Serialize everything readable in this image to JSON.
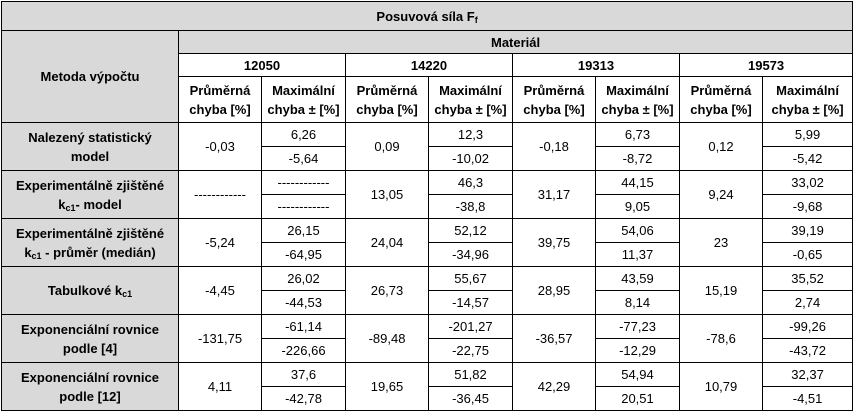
{
  "title": {
    "main": "Posuvová síla F",
    "sub": "f"
  },
  "method_header": "Metoda výpočtu",
  "material_header": "Materiál",
  "avg_label_1": "Průměrná",
  "avg_label_2": "chyba [%]",
  "max_label_1": "Maximální",
  "max_label_2": "chyba ± [%]",
  "materials": [
    "12050",
    "14220",
    "19313",
    "19573"
  ],
  "rows": [
    {
      "label_1": "Nalezený statistický",
      "label_2": "model",
      "cells": [
        {
          "avg": "-0,03",
          "max_top": "6,26",
          "max_bottom": "-5,64"
        },
        {
          "avg": "0,09",
          "max_top": "12,3",
          "max_bottom": "-10,02"
        },
        {
          "avg": "-0,18",
          "max_top": "6,73",
          "max_bottom": "-8,72"
        },
        {
          "avg": "0,12",
          "max_top": "5,99",
          "max_bottom": "-5,42"
        }
      ]
    },
    {
      "label_1": "Experimentálně zjištěné",
      "label_2_pre": "k",
      "label_2_sub": "c1",
      "label_2_post": "- model",
      "cells": [
        {
          "avg": "------------",
          "max_top": "------------",
          "max_bottom": "------------"
        },
        {
          "avg": "13,05",
          "max_top": "46,3",
          "max_bottom": "-38,8"
        },
        {
          "avg": "31,17",
          "max_top": "44,15",
          "max_bottom": "9,05"
        },
        {
          "avg": "9,24",
          "max_top": "33,02",
          "max_bottom": "-9,68"
        }
      ]
    },
    {
      "label_1": "Experimentálně zjištěné",
      "label_2_pre": "k",
      "label_2_sub": "c1",
      "label_2_post": " - průměr (medián)",
      "cells": [
        {
          "avg": "-5,24",
          "max_top": "26,15",
          "max_bottom": "-64,95"
        },
        {
          "avg": "24,04",
          "max_top": "52,12",
          "max_bottom": "-34,96"
        },
        {
          "avg": "39,75",
          "max_top": "54,06",
          "max_bottom": "11,37"
        },
        {
          "avg": "23",
          "max_top": "39,19",
          "max_bottom": "-0,65"
        }
      ]
    },
    {
      "label_pre": "Tabulkové  k",
      "label_sub": "c1",
      "cells": [
        {
          "avg": "-4,45",
          "max_top": "26,02",
          "max_bottom": "-44,53"
        },
        {
          "avg": "26,73",
          "max_top": "55,67",
          "max_bottom": "-14,57"
        },
        {
          "avg": "28,95",
          "max_top": "43,59",
          "max_bottom": "8,14"
        },
        {
          "avg": "15,19",
          "max_top": "35,52",
          "max_bottom": "2,74"
        }
      ]
    },
    {
      "label_1": "Exponenciální rovnice",
      "label_2": "podle [4]",
      "cells": [
        {
          "avg": "-131,75",
          "max_top": "-61,14",
          "max_bottom": "-226,66"
        },
        {
          "avg": "-89,48",
          "max_top": "-201,27",
          "max_bottom": "-22,75"
        },
        {
          "avg": "-36,57",
          "max_top": "-77,23",
          "max_bottom": "-12,29"
        },
        {
          "avg": "-78,6",
          "max_top": "-99,26",
          "max_bottom": "-43,72"
        }
      ]
    },
    {
      "label_1": "Exponenciální rovnice",
      "label_2": "podle [12]",
      "cells": [
        {
          "avg": "4,11",
          "max_top": "37,6",
          "max_bottom": "-42,78"
        },
        {
          "avg": "19,65",
          "max_top": "51,82",
          "max_bottom": "-36,45"
        },
        {
          "avg": "42,29",
          "max_top": "54,94",
          "max_bottom": "20,51"
        },
        {
          "avg": "10,79",
          "max_top": "32,37",
          "max_bottom": "-4,51"
        }
      ]
    }
  ]
}
